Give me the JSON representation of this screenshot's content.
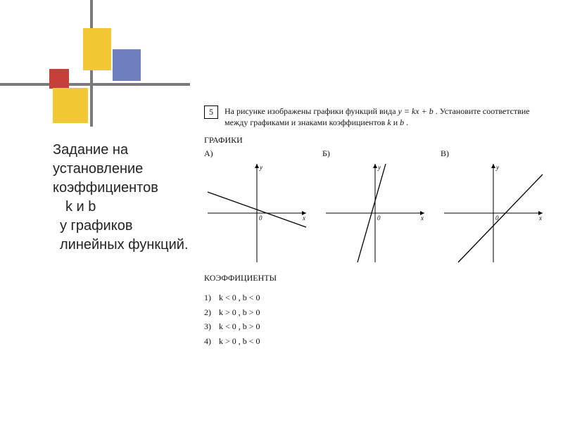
{
  "decor": {
    "colors": {
      "yellow": "#f2c935",
      "blue": "#6f7fbf",
      "red": "#c44038",
      "line": "#7a7a7a"
    }
  },
  "left": {
    "line1": "Задание на установление коэффициентов",
    "line2": "k и b",
    "line3": "у графиков линейных функций."
  },
  "problem": {
    "number": "5",
    "intro_a": "На рисунке изображены графики функций вида ",
    "formula": "y = kx + b",
    "intro_b": ". Установите соответствие между графиками и знаками коэффициентов ",
    "k": "k",
    "and": " и ",
    "b": "b",
    "intro_end": " .",
    "graphs_label": "ГРАФИКИ",
    "coef_label": "КОЭФФИЦИЕНТЫ",
    "labels": {
      "a": "А)",
      "b": "Б)",
      "c": "В)"
    },
    "axis": {
      "x": "x",
      "y": "y",
      "o": "0"
    },
    "charts": {
      "a": {
        "type": "line",
        "axis_color": "#000000",
        "line_color": "#000000",
        "xlim": [
          -70,
          70
        ],
        "ylim": [
          -70,
          70
        ],
        "p1_x": -70,
        "p1_y": 30,
        "p2_x": 70,
        "p2_y": -20
      },
      "b": {
        "type": "line",
        "axis_color": "#000000",
        "line_color": "#000000",
        "xlim": [
          -70,
          70
        ],
        "ylim": [
          -70,
          70
        ],
        "p1_x": -25,
        "p1_y": -70,
        "p2_x": 15,
        "p2_y": 70
      },
      "c": {
        "type": "line",
        "axis_color": "#000000",
        "line_color": "#000000",
        "xlim": [
          -70,
          70
        ],
        "ylim": [
          -70,
          70
        ],
        "p1_x": -50,
        "p1_y": -70,
        "p2_x": 70,
        "p2_y": 55
      }
    },
    "coefficients": [
      {
        "idx": "1)",
        "text": "k < 0 , b < 0"
      },
      {
        "idx": "2)",
        "text": "k > 0 , b > 0"
      },
      {
        "idx": "3)",
        "text": "k < 0 , b > 0"
      },
      {
        "idx": "4)",
        "text": "k > 0 , b < 0"
      }
    ]
  }
}
